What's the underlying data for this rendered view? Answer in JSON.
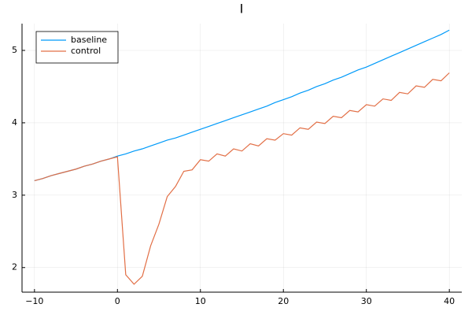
{
  "chart_data": {
    "type": "line",
    "title": "I",
    "x": [
      -10,
      -9,
      -8,
      -7,
      -6,
      -5,
      -4,
      -3,
      -2,
      -1,
      0,
      1,
      2,
      3,
      4,
      5,
      6,
      7,
      8,
      9,
      10,
      11,
      12,
      13,
      14,
      15,
      16,
      17,
      18,
      19,
      20,
      21,
      22,
      23,
      24,
      25,
      26,
      27,
      28,
      29,
      30,
      31,
      32,
      33,
      34,
      35,
      36,
      37,
      38,
      39,
      40
    ],
    "series": [
      {
        "name": "baseline",
        "color": "#009af9",
        "values": [
          3.2,
          3.23,
          3.27,
          3.3,
          3.33,
          3.36,
          3.4,
          3.43,
          3.47,
          3.5,
          3.54,
          3.57,
          3.61,
          3.64,
          3.68,
          3.72,
          3.76,
          3.79,
          3.83,
          3.87,
          3.91,
          3.95,
          3.99,
          4.03,
          4.07,
          4.11,
          4.15,
          4.19,
          4.23,
          4.28,
          4.32,
          4.36,
          4.41,
          4.45,
          4.5,
          4.54,
          4.59,
          4.63,
          4.68,
          4.73,
          4.77,
          4.82,
          4.87,
          4.92,
          4.97,
          5.02,
          5.07,
          5.12,
          5.17,
          5.22,
          5.28
        ]
      },
      {
        "name": "control",
        "color": "#e26f46",
        "values": [
          3.2,
          3.23,
          3.27,
          3.3,
          3.33,
          3.36,
          3.4,
          3.43,
          3.47,
          3.5,
          3.53,
          1.9,
          1.77,
          1.88,
          2.3,
          2.6,
          2.98,
          3.12,
          3.33,
          3.35,
          3.49,
          3.47,
          3.57,
          3.54,
          3.64,
          3.61,
          3.71,
          3.68,
          3.78,
          3.76,
          3.85,
          3.83,
          3.93,
          3.91,
          4.01,
          3.99,
          4.09,
          4.07,
          4.17,
          4.15,
          4.25,
          4.23,
          4.33,
          4.31,
          4.42,
          4.4,
          4.51,
          4.49,
          4.6,
          4.58,
          4.69
        ]
      }
    ],
    "xlim": [
      -11.5,
      41.5
    ],
    "xticks": [
      {
        "value": -10,
        "label": "−10"
      },
      0,
      10,
      20,
      30,
      40
    ],
    "ylim": [
      1.66,
      5.37
    ],
    "yticks": [
      2,
      3,
      4,
      5
    ],
    "grid": true,
    "legend": "top-left"
  }
}
